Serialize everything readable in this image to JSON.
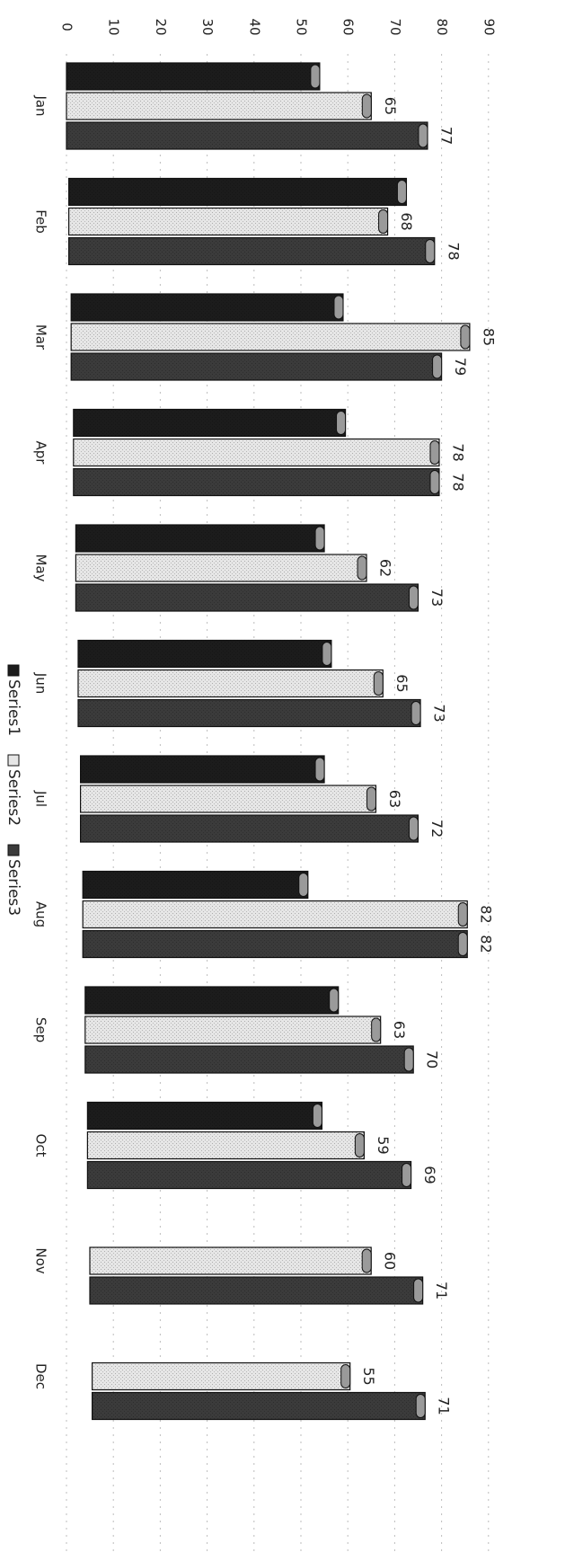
{
  "chart_data": {
    "type": "bar",
    "orientation": "horizontal",
    "categories": [
      "Jan",
      "Feb",
      "Mar",
      "Apr",
      "May",
      "Jun",
      "Jul",
      "Aug",
      "Sep",
      "Oct",
      "Nov",
      "Dec"
    ],
    "series": [
      {
        "name": "Series1",
        "values": [
          54,
          72,
          58,
          58,
          53,
          54,
          52,
          48,
          54,
          50,
          null,
          null
        ],
        "color": "#1c1c1c",
        "labels": false
      },
      {
        "name": "Series2",
        "values": [
          65,
          68,
          85,
          78,
          62,
          65,
          63,
          82,
          63,
          59,
          60,
          55
        ],
        "color": "#e6e6e6",
        "labels": true
      },
      {
        "name": "Series3",
        "values": [
          77,
          78,
          79,
          78,
          73,
          73,
          72,
          82,
          70,
          69,
          71,
          71
        ],
        "color": "#3b3b3b",
        "labels": true
      }
    ],
    "xlim": [
      0,
      90
    ],
    "xticks": [
      0,
      10,
      20,
      30,
      40,
      50,
      60,
      70,
      80,
      90
    ],
    "grid": true,
    "legend": "bottom",
    "orientation_note": "image rotated 90 degrees clockwise"
  }
}
